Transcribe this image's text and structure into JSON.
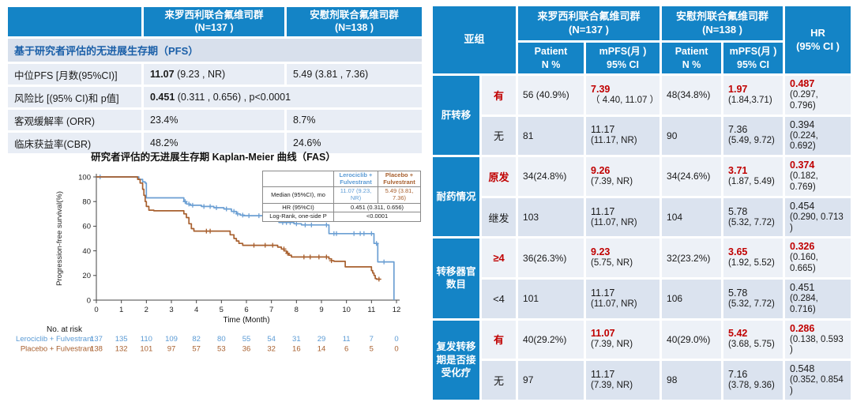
{
  "colors": {
    "header_blue": "#1484C6",
    "section_bg": "#D8E0EC",
    "section_text": "#1A5FA8",
    "row_light": "#EDF1F7",
    "row_dark": "#DBE3EF",
    "left_row_bg": "#E8EDF5",
    "highlight_red": "#C00000",
    "curve_blue": "#6B9FD3",
    "curve_brown": "#A8602F"
  },
  "summary_table": {
    "arm1": "来罗西利联合氟维司群\n(N=137 )",
    "arm2": "安慰剂联合氟维司群\n(N=138 )",
    "section": "基于研究者评估的无进展生存期（PFS）",
    "rows": [
      {
        "label": "中位PFS [月数(95%CI)]",
        "v1_bold": "11.07",
        "v1_rest": " (9.23 , NR)",
        "v2": "5.49 (3.81 , 7.36)"
      },
      {
        "label": "风险比 [(95% CI)和 p值]",
        "v1_bold": "0.451",
        "v1_rest": " (0.311 , 0.656) , p<0.0001"
      },
      {
        "label": "客观缓解率 (ORR)",
        "v1": "23.4%",
        "v2": "8.7%"
      },
      {
        "label": "临床获益率(CBR)",
        "v1": "48.2%",
        "v2": "24.6%"
      }
    ]
  },
  "chart_data": {
    "type": "line",
    "subtype": "kaplan-meier-step",
    "title": "研究者评估的无进展生存期 Kaplan-Meier 曲线（FAS）",
    "xlabel": "Time (Month)",
    "ylabel": "Progression-free survival(%)",
    "xlim": [
      0,
      12
    ],
    "ylim": [
      0,
      100
    ],
    "xticks": [
      0,
      1,
      2,
      3,
      4,
      5,
      6,
      7,
      8,
      9,
      10,
      11,
      12
    ],
    "yticks": [
      0,
      20,
      40,
      60,
      80,
      100
    ],
    "grid": false,
    "series": [
      {
        "name": "Lerociclib + Fulvestrant",
        "color": "#6B9FD3",
        "points": [
          [
            0,
            100
          ],
          [
            1.7,
            100
          ],
          [
            1.7,
            98
          ],
          [
            1.85,
            98
          ],
          [
            1.85,
            96
          ],
          [
            1.95,
            96
          ],
          [
            1.95,
            95
          ],
          [
            2.0,
            95
          ],
          [
            2.0,
            83
          ],
          [
            3.5,
            83
          ],
          [
            3.5,
            80
          ],
          [
            3.6,
            80
          ],
          [
            3.6,
            78
          ],
          [
            3.75,
            78
          ],
          [
            3.75,
            77
          ],
          [
            4.2,
            77
          ],
          [
            4.2,
            76
          ],
          [
            4.7,
            76
          ],
          [
            4.7,
            75
          ],
          [
            5.1,
            75
          ],
          [
            5.1,
            74
          ],
          [
            5.4,
            74
          ],
          [
            5.4,
            72
          ],
          [
            5.6,
            72
          ],
          [
            5.6,
            70
          ],
          [
            5.75,
            70
          ],
          [
            5.75,
            69
          ],
          [
            5.9,
            69
          ],
          [
            5.9,
            68.5
          ],
          [
            7.3,
            68.5
          ],
          [
            7.3,
            63
          ],
          [
            7.9,
            63
          ],
          [
            7.9,
            62
          ],
          [
            8.2,
            62
          ],
          [
            8.2,
            61
          ],
          [
            9.3,
            61
          ],
          [
            9.3,
            54
          ],
          [
            11.1,
            54
          ],
          [
            11.1,
            46
          ],
          [
            11.25,
            46
          ],
          [
            11.25,
            31
          ],
          [
            11.9,
            31
          ],
          [
            11.9,
            0
          ]
        ],
        "censors": [
          [
            0.15,
            100
          ],
          [
            3.55,
            80
          ],
          [
            3.7,
            78
          ],
          [
            3.85,
            77
          ],
          [
            4.3,
            76
          ],
          [
            4.55,
            76
          ],
          [
            4.8,
            75
          ],
          [
            5.2,
            74
          ],
          [
            5.5,
            72
          ],
          [
            5.65,
            70
          ],
          [
            5.85,
            69
          ],
          [
            6.1,
            68.5
          ],
          [
            6.5,
            68.5
          ],
          [
            6.75,
            68.5
          ],
          [
            7.05,
            68.5
          ],
          [
            7.45,
            63
          ],
          [
            7.6,
            63
          ],
          [
            7.75,
            63
          ],
          [
            8.0,
            62
          ],
          [
            8.35,
            61
          ],
          [
            8.6,
            61
          ],
          [
            9.2,
            61
          ],
          [
            9.5,
            54
          ],
          [
            9.6,
            54
          ],
          [
            10.3,
            54
          ],
          [
            10.55,
            54
          ],
          [
            10.7,
            54
          ],
          [
            11.0,
            54
          ],
          [
            11.2,
            46
          ],
          [
            11.5,
            31
          ]
        ]
      },
      {
        "name": "Placebo + Fulvestrant",
        "color": "#A8602F",
        "points": [
          [
            0,
            100
          ],
          [
            1.65,
            100
          ],
          [
            1.65,
            98
          ],
          [
            1.75,
            98
          ],
          [
            1.75,
            95
          ],
          [
            1.85,
            95
          ],
          [
            1.85,
            90
          ],
          [
            1.9,
            90
          ],
          [
            1.9,
            85
          ],
          [
            1.95,
            85
          ],
          [
            1.95,
            80
          ],
          [
            2.0,
            80
          ],
          [
            2.0,
            76
          ],
          [
            2.1,
            76
          ],
          [
            2.1,
            73
          ],
          [
            2.3,
            73
          ],
          [
            2.3,
            72.5
          ],
          [
            3.5,
            72.5
          ],
          [
            3.5,
            70
          ],
          [
            3.6,
            70
          ],
          [
            3.6,
            67
          ],
          [
            3.7,
            67
          ],
          [
            3.7,
            62
          ],
          [
            3.8,
            62
          ],
          [
            3.8,
            58
          ],
          [
            3.9,
            58
          ],
          [
            3.9,
            56
          ],
          [
            5.35,
            56
          ],
          [
            5.35,
            53
          ],
          [
            5.5,
            53
          ],
          [
            5.5,
            50
          ],
          [
            5.6,
            50
          ],
          [
            5.6,
            48
          ],
          [
            5.7,
            48
          ],
          [
            5.7,
            46
          ],
          [
            5.85,
            46
          ],
          [
            5.85,
            44.5
          ],
          [
            7.25,
            44.5
          ],
          [
            7.25,
            43
          ],
          [
            7.4,
            43
          ],
          [
            7.4,
            41.5
          ],
          [
            7.5,
            41.5
          ],
          [
            7.5,
            40
          ],
          [
            7.6,
            40
          ],
          [
            7.6,
            38
          ],
          [
            7.7,
            38
          ],
          [
            7.7,
            36.5
          ],
          [
            7.8,
            36.5
          ],
          [
            7.8,
            35
          ],
          [
            9.3,
            35
          ],
          [
            9.3,
            33.5
          ],
          [
            9.4,
            33.5
          ],
          [
            9.4,
            32
          ],
          [
            9.5,
            32
          ],
          [
            9.5,
            31.5
          ],
          [
            9.95,
            31.5
          ],
          [
            9.95,
            27
          ],
          [
            11.0,
            27
          ],
          [
            11.0,
            24
          ],
          [
            11.05,
            24
          ],
          [
            11.05,
            22
          ],
          [
            11.1,
            22
          ],
          [
            11.1,
            20
          ],
          [
            11.15,
            20
          ],
          [
            11.15,
            17.5
          ],
          [
            11.2,
            17.5
          ],
          [
            11.2,
            17
          ],
          [
            11.35,
            17
          ]
        ],
        "censors": [
          [
            4.4,
            56
          ],
          [
            4.55,
            56
          ],
          [
            6.3,
            44.5
          ],
          [
            6.75,
            44.5
          ],
          [
            7.05,
            44.5
          ],
          [
            7.5,
            41.5
          ],
          [
            7.65,
            38
          ],
          [
            8.3,
            35
          ],
          [
            8.55,
            35
          ],
          [
            8.9,
            35
          ],
          [
            9.2,
            35
          ],
          [
            9.4,
            32
          ],
          [
            11.3,
            17
          ]
        ]
      }
    ],
    "no_at_risk": {
      "label": "No. at risk",
      "rows": [
        {
          "name": "Lerociclib + Fulvestrant",
          "color": "#5B9BD5",
          "values": [
            137,
            135,
            110,
            109,
            82,
            80,
            55,
            54,
            31,
            29,
            11,
            7,
            0
          ]
        },
        {
          "name": "Placebo + Fulvestrant",
          "color": "#A8602F",
          "values": [
            138,
            132,
            101,
            97,
            57,
            53,
            36,
            32,
            16,
            14,
            6,
            5,
            0
          ]
        }
      ]
    },
    "inset_table": {
      "header": [
        "",
        "Lerociclib +\nFulvestrant",
        "Placebo +\nFulvestrant"
      ],
      "rows": [
        {
          "label": "Median (95%CI), mo",
          "v1": "11.07 (9.23, NR)",
          "v2": "5.49 (3.81, 7.36)"
        },
        {
          "label": "HR (95%CI)",
          "span": "0.451  (0.311, 0.656)"
        },
        {
          "label": "Log-Rank, one-side P",
          "span": "<0.0001"
        }
      ]
    },
    "legend_position": "inset-top-right"
  },
  "subgroup_table": {
    "corner": "亚组",
    "arm1": "来罗西利联合氟维司群\n(N=137 )",
    "arm2": "安慰剂联合氟维司群\n(N=138 )",
    "hr_header": "HR\n(95% CI )",
    "patient_header": "Patient\nN %",
    "mpfs_header": "mPFS(月 )\n95% CI",
    "groups": [
      {
        "label": "肝转移",
        "rows": [
          {
            "sub": "有",
            "n1": "56 (40.9%)",
            "m1": "7.39",
            "m1ci": "（ 4.40, 11.07 ）",
            "n2": "48(34.8%)",
            "m2": "1.97",
            "m2ci": "(1.84,3.71)",
            "hr": "0.487",
            "hrci": "(0.297, 0.796)"
          },
          {
            "sub": "无",
            "n1": "81",
            "m1": "11.17",
            "m1ci": "(11.17, NR)",
            "n2": "90",
            "m2": "7.36",
            "m2ci": "(5.49, 9.72)",
            "hr": "0.394",
            "hrci": "(0.224, 0.692)"
          }
        ]
      },
      {
        "label": "耐药情况",
        "rows": [
          {
            "sub": "原发",
            "n1": "34(24.8%)",
            "m1": "9.26",
            "m1ci": "(7.39, NR)",
            "n2": "34(24.6%)",
            "m2": "3.71",
            "m2ci": "(1.87, 5.49)",
            "hr": "0.374",
            "hrci": "(0.182, 0.769)"
          },
          {
            "sub": "继发",
            "n1": "103",
            "m1": "11.17",
            "m1ci": "(11.07, NR)",
            "n2": "104",
            "m2": "5.78",
            "m2ci": "(5.32, 7.72)",
            "hr": "0.454",
            "hrci": "(0.290, 0.713 )"
          }
        ]
      },
      {
        "label": "转移器官\n数目",
        "rows": [
          {
            "sub": "≥4",
            "n1": "36(26.3%)",
            "m1": "9.23",
            "m1ci": "(5.75, NR)",
            "n2": "32(23.2%)",
            "m2": "3.65",
            "m2ci": "(1.92, 5.52)",
            "hr": "0.326",
            "hrci": "(0.160, 0.665)"
          },
          {
            "sub": "<4",
            "n1": "101",
            "m1": "11.17",
            "m1ci": "(11.07, NR)",
            "n2": "106",
            "m2": "5.78",
            "m2ci": "(5.32, 7.72)",
            "hr": "0.451",
            "hrci": "(0.284, 0.716)"
          }
        ]
      },
      {
        "label": "复发转移\n期是否接\n受化疗",
        "rows": [
          {
            "sub": "有",
            "n1": "40(29.2%)",
            "m1": "11.07",
            "m1ci": "(7.39, NR)",
            "n2": "40(29.0%)",
            "m2": "5.42",
            "m2ci": "(3.68, 5.75)",
            "hr": "0.286",
            "hrci": "(0.138, 0.593 )"
          },
          {
            "sub": "无",
            "n1": "97",
            "m1": "11.17",
            "m1ci": "(7.39, NR)",
            "n2": "98",
            "m2": "7.16",
            "m2ci": "(3.78, 9.36)",
            "hr": "0.548",
            "hrci": "(0.352, 0.854 )"
          }
        ]
      }
    ]
  }
}
